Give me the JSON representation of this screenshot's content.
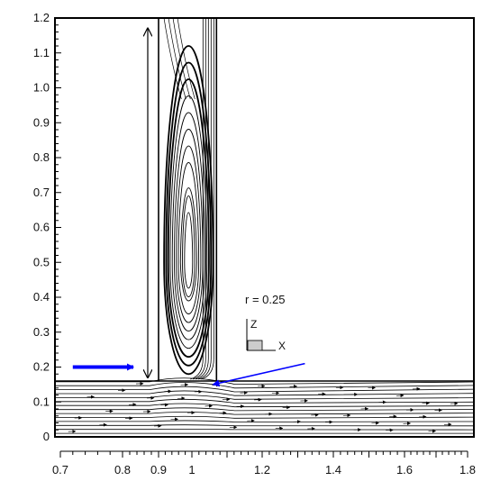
{
  "chart_data": {
    "type": "line",
    "title": "",
    "xlabel": "",
    "ylabel": "",
    "xlim": [
      0.7,
      1.8
    ],
    "ylim": [
      0,
      1.2
    ],
    "x_ticks": [
      "0.7",
      "0.8",
      "0.9",
      "1",
      "1.2",
      "1.4",
      "1.6",
      "1.8"
    ],
    "x_tick_values": [
      0.7,
      0.8,
      0.9,
      1.0,
      1.2,
      1.4,
      1.6,
      1.8
    ],
    "y_ticks": [
      "0",
      "0.1",
      "0.2",
      "0.3",
      "0.4",
      "0.5",
      "0.6",
      "0.7",
      "0.8",
      "0.9",
      "1.0",
      "1.1",
      "1.2"
    ],
    "y_tick_values": [
      0,
      0.1,
      0.2,
      0.3,
      0.4,
      0.5,
      0.6,
      0.7,
      0.8,
      0.9,
      1.0,
      1.1,
      1.2
    ],
    "geometry": {
      "channel": {
        "x": [
          0.7,
          1.8
        ],
        "y": [
          0.0,
          0.16
        ]
      },
      "cavity": {
        "x": [
          0.9,
          1.07
        ],
        "y": [
          0.16,
          1.2
        ]
      },
      "vortex_center": [
        0.99,
        0.5
      ]
    },
    "annotations": {
      "ratio_label": "r = 0.25",
      "axis_z": "Z",
      "axis_x": "X",
      "inflow_arrow": {
        "from": [
          0.72,
          0.2
        ],
        "to": [
          0.83,
          0.2
        ],
        "color": "#0000ff"
      },
      "pointer_arrow": {
        "from": [
          1.32,
          0.21
        ],
        "to": [
          1.06,
          0.15
        ],
        "color": "#0000ff"
      },
      "height_arrow": {
        "x": 0.87,
        "y": [
          0.17,
          1.17
        ],
        "color": "#000000"
      }
    },
    "grid": false,
    "legend": "none"
  }
}
